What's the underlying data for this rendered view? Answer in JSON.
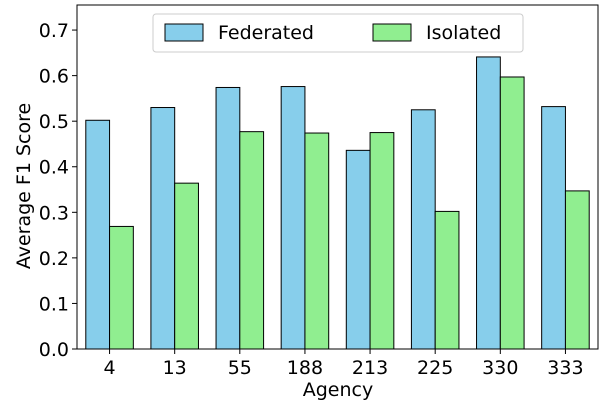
{
  "chart_data": {
    "type": "bar",
    "title": "",
    "xlabel": "Agency",
    "ylabel": "Average F1 Score",
    "categories": [
      "4",
      "13",
      "55",
      "188",
      "213",
      "225",
      "330",
      "333"
    ],
    "series": [
      {
        "name": "Federated",
        "color": "#87CEEB",
        "values": [
          0.502,
          0.53,
          0.574,
          0.576,
          0.436,
          0.525,
          0.641,
          0.532
        ]
      },
      {
        "name": "Isolated",
        "color": "#90EE90",
        "values": [
          0.269,
          0.364,
          0.477,
          0.474,
          0.475,
          0.302,
          0.597,
          0.347
        ]
      }
    ],
    "ylim": [
      0,
      0.755
    ],
    "yticks": [
      "0.0",
      "0.1",
      "0.2",
      "0.3",
      "0.4",
      "0.5",
      "0.6",
      "0.7"
    ],
    "legend": "top-center",
    "grid": false
  }
}
